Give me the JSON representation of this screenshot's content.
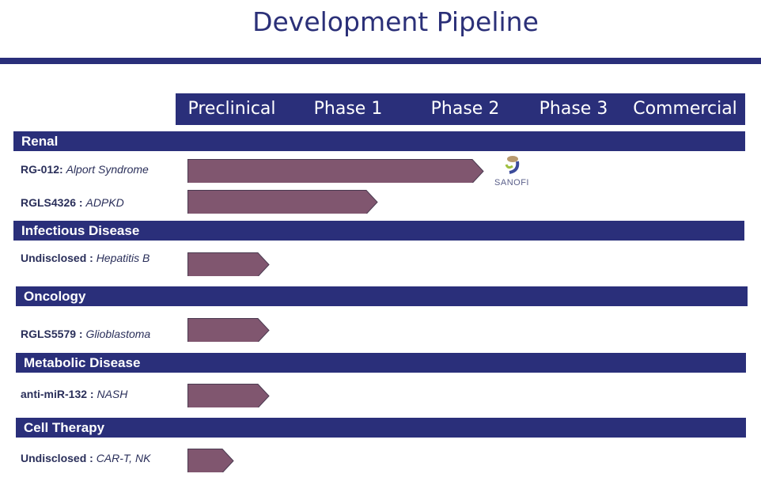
{
  "title": "Development Pipeline",
  "phases": [
    "Preclinical",
    "Phase 1",
    "Phase 2",
    "Phase 3",
    "Commercial"
  ],
  "colors": {
    "navy": "#2a2f7a",
    "bar": "#80566f"
  },
  "sections": [
    {
      "name": "Renal",
      "programs": [
        {
          "code": "RG-012:",
          "indication": "Alport Syndrome",
          "progress": 0.53,
          "partner": "SANOFI"
        },
        {
          "code": "RGLS4326 :",
          "indication": "ADPKD",
          "progress": 0.34
        }
      ]
    },
    {
      "name": "Infectious Disease",
      "programs": [
        {
          "code": "Undisclosed :",
          "indication": "Hepatitis B",
          "progress": 0.146
        }
      ]
    },
    {
      "name": "Oncology",
      "programs": [
        {
          "code": "RGLS5579 :",
          "indication": "Glioblastoma",
          "progress": 0.146
        }
      ]
    },
    {
      "name": "Metabolic Disease",
      "programs": [
        {
          "code": "anti-miR-132 :",
          "indication": "NASH",
          "progress": 0.146
        }
      ]
    },
    {
      "name": "Cell Therapy",
      "programs": [
        {
          "code": "Undisclosed :",
          "indication": "CAR-T, NK",
          "progress": 0.082
        }
      ]
    }
  ]
}
